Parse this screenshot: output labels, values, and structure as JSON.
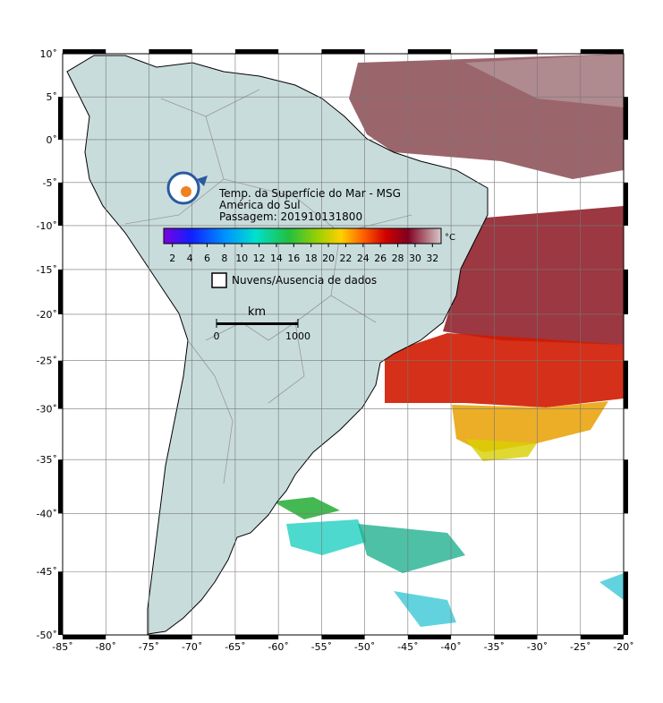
{
  "map": {
    "title_lines": [
      "Temp. da Superfície do Mar - MSG",
      "América do Sul",
      "Passagem: 201910131800"
    ],
    "colorbar": {
      "unit": "°C",
      "range": [
        1,
        33
      ],
      "ticks": [
        2,
        4,
        6,
        8,
        10,
        12,
        14,
        16,
        18,
        20,
        22,
        24,
        26,
        28,
        30,
        32
      ]
    },
    "legend": "Nuvens/Ausencia de dados",
    "scale_bar": {
      "unit": "km",
      "range": [
        0,
        1000
      ],
      "ticks": [
        0,
        1000
      ]
    },
    "xlim": [
      -85,
      -20
    ],
    "ylim": [
      -50,
      10
    ],
    "xticks": [
      {
        "value": -85,
        "label": "-85˚"
      },
      {
        "value": -80,
        "label": "-80˚"
      },
      {
        "value": -75,
        "label": "-75˚"
      },
      {
        "value": -70,
        "label": "-70˚"
      },
      {
        "value": -65,
        "label": "-65˚"
      },
      {
        "value": -60,
        "label": "-60˚"
      },
      {
        "value": -55,
        "label": "-55˚"
      },
      {
        "value": -50,
        "label": "-50˚"
      },
      {
        "value": -45,
        "label": "-45˚"
      },
      {
        "value": -40,
        "label": "-40˚"
      },
      {
        "value": -35,
        "label": "-35˚"
      },
      {
        "value": -30,
        "label": "-30˚"
      },
      {
        "value": -25,
        "label": "-25˚"
      },
      {
        "value": -20,
        "label": "-20˚"
      }
    ],
    "yticks": [
      {
        "value": 10,
        "label": "10˚"
      },
      {
        "value": 5,
        "label": "5˚"
      },
      {
        "value": 0,
        "label": "0˚"
      },
      {
        "value": -5,
        "label": "-5˚"
      },
      {
        "value": -10,
        "label": "-10˚"
      },
      {
        "value": -15,
        "label": "-15˚"
      },
      {
        "value": -20,
        "label": "-20˚"
      },
      {
        "value": -25,
        "label": "-25˚"
      },
      {
        "value": -30,
        "label": "-30˚"
      },
      {
        "value": -35,
        "label": "-35˚"
      },
      {
        "value": -40,
        "label": "-40˚"
      },
      {
        "value": -45,
        "label": "-45˚"
      },
      {
        "value": -50,
        "label": "-50˚"
      }
    ]
  }
}
